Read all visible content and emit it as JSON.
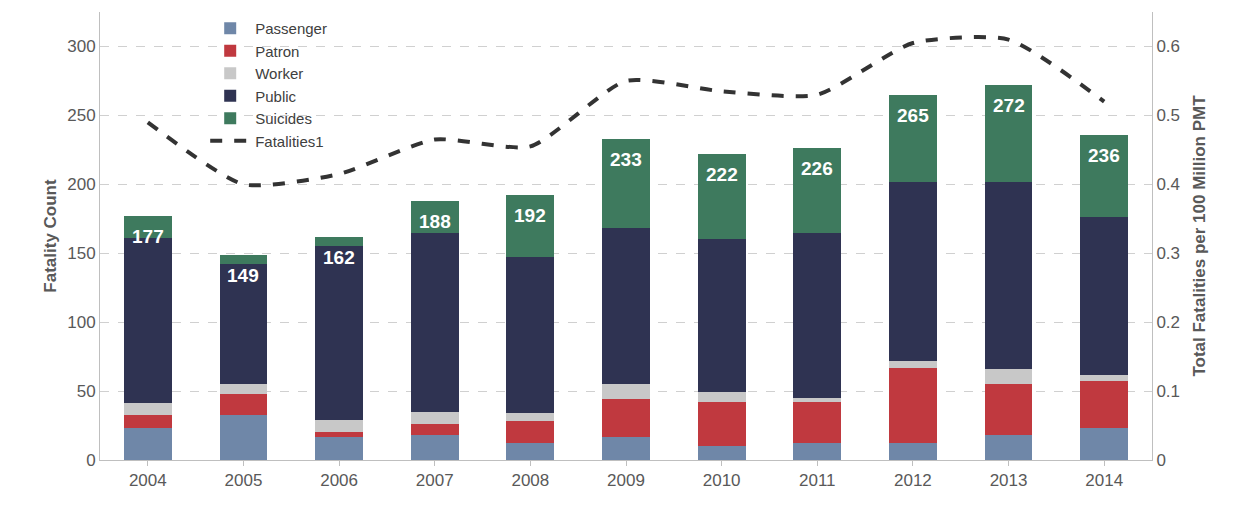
{
  "chart_data": {
    "type": "bar",
    "stacked": true,
    "categories": [
      "2004",
      "2005",
      "2006",
      "2007",
      "2008",
      "2009",
      "2010",
      "2011",
      "2012",
      "2013",
      "2014"
    ],
    "series": [
      {
        "name": "Passenger",
        "color": "#6f87a8",
        "values": [
          23,
          33,
          17,
          18,
          12,
          17,
          10,
          12,
          12,
          18,
          23
        ]
      },
      {
        "name": "Patron",
        "color": "#c0393f",
        "values": [
          10,
          15,
          3,
          8,
          16,
          27,
          32,
          30,
          55,
          37,
          34
        ]
      },
      {
        "name": "Worker",
        "color": "#c8c8c8",
        "values": [
          8,
          7,
          9,
          9,
          6,
          11,
          7,
          3,
          5,
          11,
          5
        ]
      },
      {
        "name": "Public",
        "color": "#2f3352",
        "values": [
          120,
          87,
          126,
          130,
          113,
          113,
          111,
          120,
          130,
          136,
          114
        ]
      },
      {
        "name": "Suicides",
        "color": "#3e7a5e",
        "values": [
          16,
          7,
          7,
          23,
          45,
          65,
          62,
          61,
          63,
          70,
          60
        ]
      },
      {
        "name": "Fatalities1",
        "type": "line",
        "axis": "y2",
        "color": "#333333",
        "line_style": "dash",
        "values": [
          0.49,
          0.4,
          0.415,
          0.465,
          0.455,
          0.55,
          0.535,
          0.53,
          0.605,
          0.61,
          0.52
        ]
      }
    ],
    "totals": [
      177,
      149,
      162,
      188,
      192,
      233,
      222,
      226,
      265,
      272,
      236
    ],
    "y_label": "Fatality Count",
    "y2_label": "Total Fatalities per 100 Million PMT",
    "ylim": [
      0,
      325
    ],
    "yticks": [
      0,
      50,
      100,
      150,
      200,
      250,
      300
    ],
    "y2lim": [
      0,
      0.65
    ],
    "y2ticks": [
      0,
      0.1,
      0.2,
      0.3,
      0.4,
      0.5,
      0.6
    ],
    "grid": true,
    "legend": "upper left"
  }
}
